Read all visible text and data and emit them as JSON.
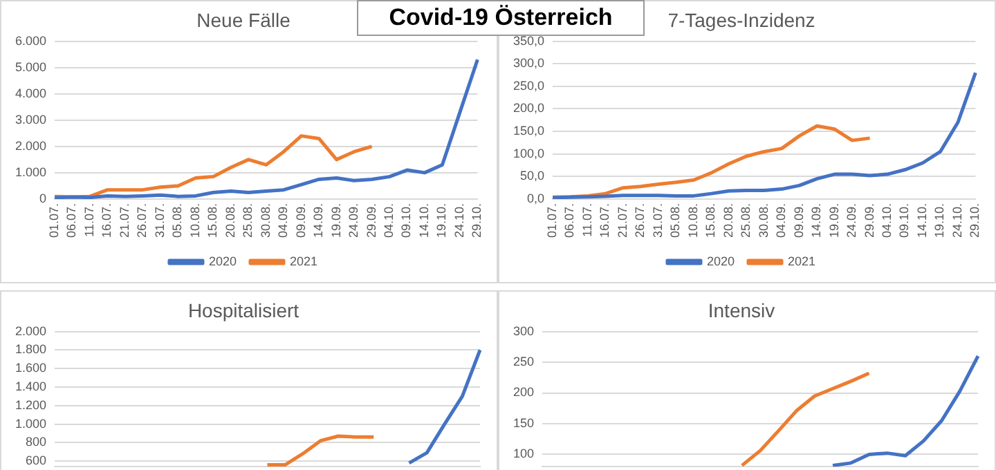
{
  "chart_data": [
    {
      "type": "other",
      "title": "Covid-19 Österreich"
    },
    {
      "type": "line",
      "title": "Neue Fälle",
      "categories": [
        "01.07.",
        "06.07.",
        "11.07.",
        "16.07.",
        "21.07.",
        "26.07.",
        "31.07.",
        "05.08.",
        "10.08.",
        "15.08.",
        "20.08.",
        "25.08.",
        "30.08.",
        "04.09.",
        "09.09.",
        "14.09.",
        "19.09.",
        "24.09.",
        "29.09.",
        "04.10.",
        "09.10.",
        "14.10.",
        "19.10.",
        "24.10.",
        "29.10."
      ],
      "series": [
        {
          "name": "2020",
          "color": "#4472c4",
          "values": [
            50,
            80,
            60,
            120,
            100,
            120,
            150,
            100,
            120,
            250,
            300,
            250,
            300,
            350,
            550,
            750,
            800,
            700,
            750,
            850,
            1100,
            1000,
            1300,
            3300,
            5300
          ]
        },
        {
          "name": "2021",
          "color": "#ed7d31",
          "values": [
            100,
            80,
            100,
            350,
            350,
            350,
            450,
            500,
            800,
            850,
            1200,
            1500,
            1300,
            1800,
            2400,
            2300,
            1500,
            1800,
            2000,
            null,
            null,
            null,
            null,
            null,
            null
          ]
        }
      ],
      "ylim": [
        0,
        6000
      ],
      "yticks": [
        {
          "value": 0,
          "label": "0"
        },
        {
          "value": 1000,
          "label": "1.000"
        },
        {
          "value": 2000,
          "label": "2.000"
        },
        {
          "value": 3000,
          "label": "3.000"
        },
        {
          "value": 4000,
          "label": "4.000"
        },
        {
          "value": 5000,
          "label": "5.000"
        },
        {
          "value": 6000,
          "label": "6.000"
        }
      ],
      "grid": "y",
      "legend": "bottom",
      "marker": "none"
    },
    {
      "type": "line",
      "title": "7-Tages-Inzidenz",
      "categories": [
        "01.07.",
        "06.07.",
        "11.07.",
        "16.07.",
        "21.07.",
        "26.07.",
        "31.07.",
        "05.08.",
        "10.08.",
        "15.08.",
        "20.08.",
        "25.08.",
        "30.08.",
        "04.09.",
        "09.09.",
        "14.09.",
        "19.09.",
        "24.09.",
        "29.09.",
        "04.10.",
        "09.10.",
        "14.10.",
        "19.10.",
        "24.10.",
        "29.10."
      ],
      "series": [
        {
          "name": "2020",
          "color": "#4472c4",
          "values": [
            3,
            4,
            5,
            6,
            8,
            8,
            8,
            7,
            7,
            12,
            18,
            19,
            19,
            22,
            30,
            45,
            55,
            55,
            52,
            55,
            65,
            80,
            105,
            170,
            280
          ]
        },
        {
          "name": "2021",
          "color": "#ed7d31",
          "values": [
            4,
            5,
            7,
            12,
            25,
            28,
            33,
            37,
            42,
            58,
            78,
            95,
            105,
            112,
            140,
            162,
            155,
            130,
            135,
            null,
            null,
            null,
            null,
            null,
            null
          ]
        }
      ],
      "ylim": [
        0,
        350
      ],
      "yticks": [
        {
          "value": 0,
          "label": "0,0"
        },
        {
          "value": 50,
          "label": "50,0"
        },
        {
          "value": 100,
          "label": "100,0"
        },
        {
          "value": 150,
          "label": "150,0"
        },
        {
          "value": 200,
          "label": "200,0"
        },
        {
          "value": 250,
          "label": "250,0"
        },
        {
          "value": 300,
          "label": "300,0"
        },
        {
          "value": 350,
          "label": "350,0"
        }
      ],
      "grid": "y",
      "legend": "bottom",
      "marker": "none"
    },
    {
      "type": "line",
      "title": "Hospitalisiert",
      "categories": [
        null,
        null,
        null,
        null,
        null,
        null,
        null,
        null,
        null,
        null,
        null,
        null,
        null,
        null,
        null,
        null,
        null,
        null,
        null,
        null,
        null,
        null,
        null,
        null,
        null
      ],
      "series": [
        {
          "color": "#4472c4",
          "values": [
            null,
            null,
            null,
            null,
            null,
            null,
            null,
            null,
            null,
            null,
            null,
            null,
            null,
            null,
            null,
            null,
            null,
            null,
            null,
            null,
            580,
            690,
            1000,
            1300,
            1800
          ]
        },
        {
          "color": "#ed7d31",
          "values": [
            null,
            null,
            null,
            null,
            null,
            null,
            null,
            null,
            null,
            null,
            null,
            null,
            560,
            560,
            680,
            820,
            870,
            860,
            860,
            null,
            null,
            null,
            null,
            null,
            null
          ]
        }
      ],
      "ylim": [
        540,
        2000
      ],
      "yticks": [
        {
          "value": 600,
          "label": "600"
        },
        {
          "value": 800,
          "label": "800"
        },
        {
          "value": 1000,
          "label": "1.000"
        },
        {
          "value": 1200,
          "label": "1.200"
        },
        {
          "value": 1400,
          "label": "1.400"
        },
        {
          "value": 1600,
          "label": "1.600"
        },
        {
          "value": 1800,
          "label": "1.800"
        },
        {
          "value": 2000,
          "label": "2.000"
        }
      ],
      "grid": "y",
      "tick_labels": "y",
      "marker": "none"
    },
    {
      "type": "line",
      "title": "Intensiv",
      "categories": [
        null,
        null,
        null,
        null,
        null,
        null,
        null,
        null,
        null,
        null,
        null,
        null,
        null,
        null,
        null,
        null,
        null,
        null,
        null,
        null,
        null,
        null,
        null,
        null,
        null
      ],
      "series": [
        {
          "color": "#4472c4",
          "values": [
            null,
            null,
            null,
            null,
            null,
            null,
            null,
            null,
            null,
            null,
            null,
            null,
            null,
            null,
            null,
            null,
            82,
            86,
            100,
            102,
            98,
            122,
            155,
            203,
            260
          ]
        },
        {
          "color": "#ed7d31",
          "values": [
            null,
            null,
            null,
            null,
            null,
            null,
            null,
            null,
            null,
            null,
            null,
            82,
            106,
            138,
            171,
            195,
            207,
            219,
            232,
            null,
            null,
            null,
            null,
            null,
            null
          ]
        }
      ],
      "ylim": [
        80,
        300
      ],
      "yticks": [
        100,
        150,
        200,
        250,
        300
      ],
      "grid": "y",
      "tick_labels": "y",
      "marker": "none"
    }
  ]
}
